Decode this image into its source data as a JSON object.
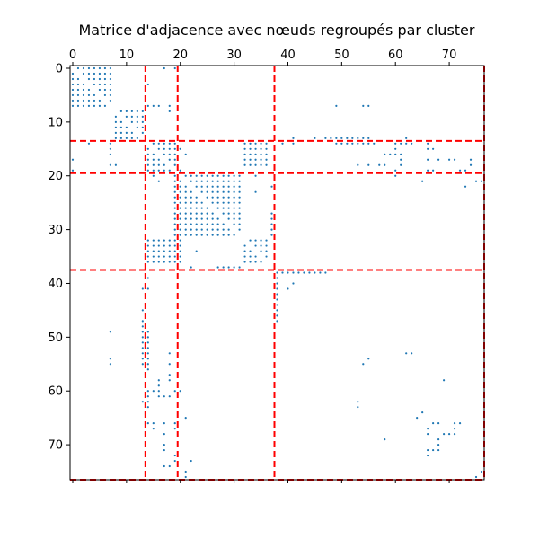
{
  "chart_data": {
    "type": "heatmap",
    "subtype": "adjacency-spy",
    "title": "Matrice d'adjacence avec nœuds regroupés par cluster",
    "n_nodes": 77,
    "x_axis": {
      "position": "top",
      "ticks": [
        0,
        10,
        20,
        30,
        40,
        50,
        60,
        70
      ],
      "range": [
        -0.5,
        76.5
      ]
    },
    "y_axis": {
      "position": "left",
      "inverted": true,
      "ticks": [
        0,
        10,
        20,
        30,
        40,
        50,
        60,
        70
      ],
      "range": [
        -0.5,
        76.5
      ]
    },
    "cluster_boundaries": [
      13.5,
      19.5,
      37.5,
      76.5
    ],
    "marker_color": "#1f77b4",
    "boundary_color": "#ff0000",
    "grid": false,
    "legend": "none",
    "nonzero_blocks": [
      {
        "rows": [
          0,
          7
        ],
        "cols": [
          0,
          7
        ],
        "stride": 1
      },
      {
        "rows": [
          8,
          13
        ],
        "cols": [
          8,
          13
        ],
        "stride": 1
      },
      {
        "rows": [
          14,
          19
        ],
        "cols": [
          14,
          19
        ],
        "stride": 1
      },
      {
        "rows": [
          20,
          31
        ],
        "cols": [
          21,
          31
        ],
        "stride": 1
      },
      {
        "rows": [
          14,
          18
        ],
        "cols": [
          32,
          36
        ],
        "stride": 1
      },
      {
        "rows": [
          32,
          36
        ],
        "cols": [
          14,
          18
        ],
        "stride": 1
      },
      {
        "rows": [
          32,
          36
        ],
        "cols": [
          32,
          36
        ],
        "stride": 1
      },
      {
        "rows": [
          19,
          36
        ],
        "cols": [
          19,
          20
        ],
        "stride": 1
      }
    ],
    "nonzero_points": [
      [
        0,
        17
      ],
      [
        0,
        19
      ],
      [
        7,
        49
      ],
      [
        7,
        54
      ],
      [
        7,
        55
      ],
      [
        14,
        3
      ],
      [
        14,
        7
      ],
      [
        15,
        7
      ],
      [
        16,
        7
      ],
      [
        18,
        7
      ],
      [
        18,
        8
      ],
      [
        14,
        39
      ],
      [
        14,
        41
      ],
      [
        14,
        49
      ],
      [
        14,
        50
      ],
      [
        14,
        51
      ],
      [
        14,
        52
      ],
      [
        14,
        53
      ],
      [
        14,
        54
      ],
      [
        14,
        55
      ],
      [
        14,
        56
      ],
      [
        14,
        60
      ],
      [
        14,
        61
      ],
      [
        14,
        62
      ],
      [
        14,
        63
      ],
      [
        15,
        66
      ],
      [
        15,
        67
      ],
      [
        16,
        58
      ],
      [
        16,
        59
      ],
      [
        16,
        60
      ],
      [
        16,
        61
      ],
      [
        17,
        66
      ],
      [
        17,
        68
      ],
      [
        17,
        70
      ],
      [
        17,
        74
      ],
      [
        18,
        53
      ],
      [
        18,
        55
      ],
      [
        18,
        57
      ],
      [
        18,
        58
      ],
      [
        18,
        74
      ],
      [
        19,
        60
      ],
      [
        19,
        66
      ],
      [
        19,
        67
      ],
      [
        19,
        72
      ],
      [
        19,
        73
      ],
      [
        20,
        60
      ],
      [
        21,
        65
      ],
      [
        21,
        75
      ],
      [
        21,
        76
      ],
      [
        22,
        73
      ],
      [
        38,
        38
      ],
      [
        38,
        39
      ],
      [
        38,
        40
      ],
      [
        38,
        41
      ],
      [
        38,
        42
      ],
      [
        38,
        43
      ],
      [
        38,
        44
      ],
      [
        38,
        45
      ],
      [
        38,
        46
      ],
      [
        38,
        47
      ],
      [
        39,
        38
      ],
      [
        40,
        38
      ],
      [
        40,
        41
      ],
      [
        41,
        38
      ],
      [
        41,
        40
      ],
      [
        42,
        38
      ],
      [
        43,
        38
      ],
      [
        44,
        38
      ],
      [
        45,
        38
      ],
      [
        46,
        38
      ],
      [
        47,
        38
      ],
      [
        49,
        7
      ],
      [
        54,
        7
      ],
      [
        55,
        7
      ],
      [
        53,
        62
      ],
      [
        53,
        63
      ],
      [
        54,
        55
      ],
      [
        55,
        54
      ],
      [
        58,
        69
      ],
      [
        62,
        53
      ],
      [
        63,
        53
      ],
      [
        64,
        65
      ],
      [
        65,
        64
      ],
      [
        66,
        67
      ],
      [
        66,
        68
      ],
      [
        67,
        66
      ],
      [
        68,
        66
      ],
      [
        68,
        69
      ],
      [
        68,
        70
      ],
      [
        68,
        71
      ],
      [
        69,
        58
      ],
      [
        69,
        68
      ],
      [
        70,
        68
      ],
      [
        71,
        68
      ],
      [
        71,
        67
      ],
      [
        72,
        66
      ],
      [
        66,
        71
      ],
      [
        66,
        72
      ],
      [
        76,
        75
      ],
      [
        75,
        76
      ],
      [
        48,
        13
      ],
      [
        49,
        13
      ],
      [
        50,
        13
      ],
      [
        51,
        13
      ],
      [
        52,
        13
      ],
      [
        53,
        13
      ],
      [
        54,
        13
      ],
      [
        55,
        13
      ],
      [
        58,
        16
      ],
      [
        59,
        16
      ],
      [
        60,
        15
      ],
      [
        60,
        16
      ],
      [
        61,
        17
      ],
      [
        61,
        18
      ],
      [
        53,
        18
      ],
      [
        55,
        18
      ],
      [
        57,
        18
      ],
      [
        62,
        13
      ],
      [
        66,
        14
      ],
      [
        67,
        15
      ],
      [
        68,
        17
      ],
      [
        71,
        17
      ],
      [
        74,
        17
      ],
      [
        74,
        18
      ],
      [
        65,
        21
      ],
      [
        66,
        19
      ],
      [
        73,
        22
      ],
      [
        37,
        27
      ],
      [
        37,
        28
      ],
      [
        37,
        29
      ],
      [
        37,
        30
      ],
      [
        37,
        31
      ],
      [
        37,
        22
      ],
      [
        41,
        13
      ],
      [
        45,
        13
      ],
      [
        47,
        13
      ],
      [
        20,
        15
      ],
      [
        21,
        16
      ],
      [
        20,
        34
      ],
      [
        23,
        34
      ],
      [
        34,
        23
      ],
      [
        34,
        20
      ]
    ]
  }
}
